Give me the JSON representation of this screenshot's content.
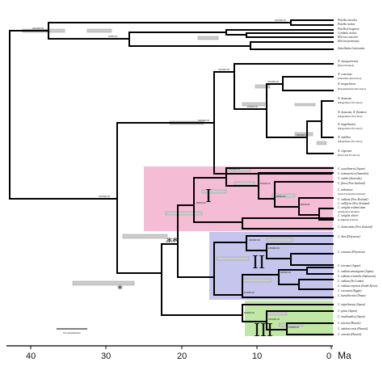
{
  "tip_labels": {
    "t0": "Patella caerulea",
    "t1": "Patella rustica",
    "t2": "Patella ferruginea",
    "t3": "Cymbula oculus",
    "t4": "Helcion concolor",
    "t5": "Helcion pruinosus",
    "t6": "Scutellastra laticostata",
    "t7": "N. macquariensis",
    "t7s": "(Heard Island)",
    "t8": "N. concinna",
    "t8s": "(maritime Antarctica)",
    "t9": "N. kerguelensis",
    "t9s": "(Kerguelensian Province)",
    "t10": "N. deaurata",
    "t10s": "(Magellanic Province)",
    "t11": "N. deaurata, N. flammea",
    "t11s": "(Magellanic Province)",
    "t12": "N. magellanica",
    "t12s": "(Magellanic Province)",
    "t13": "N. mytilina",
    "t13s": "(Magellanic Province)",
    "t14": "N. clypeater",
    "t14s": "(Peruvian Province)",
    "t15": "C. scutulinaria (Japan)",
    "t16": "C. tramoserica (Australia)",
    "t17": "C. solida (Australia)",
    "t18": "C. flava (New Zealand)",
    "t19": "C. ardosiaea",
    "t19s": "(Juan Fernandez Islands)",
    "t20": "C. radians (New Zealand)",
    "t21": "C. stellifera (New Zealand)",
    "t22": "C. strigilis redimiculum",
    "t22s": "(Antipodes Islands)",
    "t23": "C. strigilis oliveri",
    "t23s": "(Campbell Island)",
    "t24": "C. denticulata (New Zealand)",
    "t25": "C. dira (Polynesia)",
    "t26": "C. sciuncta (Polynesia)",
    "t27": "C. toreuma (Japan)",
    "t28": "C. radiata amusagona (Japan)",
    "t29": "C. radiata orientalis (Indonesia)",
    "t30": "C. radiata (Sri Lanka)",
    "t31": "C. radiata capensis (South Africa)",
    "t32": "C. eucosmia (Egypt)",
    "t33": "C. karachiensis (Oman)",
    "t34": "C. nigrolineata (Japan)",
    "t35": "C. grata (Japan)",
    "t36": "C. mastlandica (Japan)",
    "t37": "C. tulcosa (Hawaii)",
    "t38": "C. sandwicensis (Hawaii)",
    "t39": "C. exarata (Hawaii)"
  },
  "node_support": {
    "n_patella_root": "100/100/1.00",
    "n_patella_a": "100/100/1.00",
    "n_patella_b": "100/100/1.00",
    "n_patella_c": "97/98/1.00",
    "n_nac_a": "100/100/1.00",
    "n_nac_b": "100/100/1.00",
    "n_nac_c": "91/100/1.00",
    "n_nac_d": "100/100/1.00",
    "n_nac_e": "100/100/1.00",
    "n_root": "100/100/1.00",
    "n_c1_a": "100/100/1.00",
    "n_c1_b": "99/100/1.00",
    "n_c1_c": "99/99/1.00",
    "n_c1_d": "88/97/0.99",
    "n_c12": "95/97/1.00",
    "n_c123": "90/98/1.00",
    "n_c2_a": "100/100/1.00",
    "n_c2_b": "100/100/1.00",
    "n_c2_c": "99/100/1.00",
    "n_c2_d": "97/100/1.00",
    "n_c3_a": "90/100/1.00",
    "n_c3_b": "100/100/1.00",
    "n_c3_c": "97/100/1.00"
  },
  "clade_labels": {
    "I": "I",
    "II": "II",
    "III": "III"
  },
  "markers": {
    "double_star": "**",
    "single_star": "*"
  },
  "scale_bar_label": "0.6 substitutions",
  "axis": {
    "unit": "Ma",
    "ticks": [
      "40",
      "30",
      "20",
      "10",
      "0"
    ]
  },
  "colors": {
    "clade_I": "#f2a6c8",
    "clade_II": "#b7b7ea",
    "clade_III": "#b9e69a",
    "branch": "#000000",
    "error_bar": "#c8c8c8"
  }
}
